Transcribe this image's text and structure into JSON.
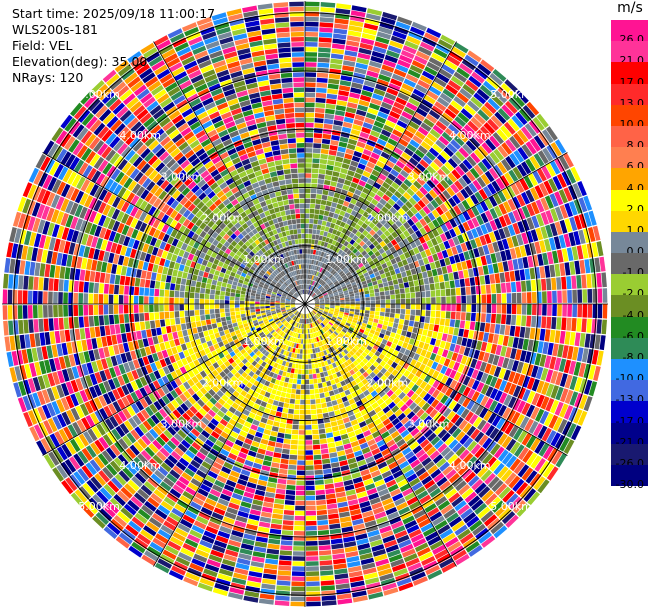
{
  "header": {
    "start_time": "Start time: 2025/09/18 11:00:17",
    "instrument": "WLS200s-181",
    "field": "Field: VEL",
    "elevation": "Elevation(deg): 35.00",
    "nrays": "NRays: 120"
  },
  "colorbar": {
    "unit": "m/s",
    "ticks": [
      "26.0",
      "21.0",
      "17.0",
      "13.0",
      "10.0",
      "8.0",
      "6.0",
      "4.0",
      "2.0",
      "1.0",
      "0.0",
      "-1.0",
      "-2.0",
      "-4.0",
      "-6.0",
      "-8.0",
      "-10.0",
      "-13.0",
      "-17.0",
      "-21.0",
      "-26.0",
      "-30.0"
    ],
    "colors": [
      "#ff1493",
      "#ff3399",
      "#ff0000",
      "#ff2a2a",
      "#ff4500",
      "#ff6347",
      "#ff7f50",
      "#ffa500",
      "#ffff00",
      "#ffd700",
      "#778899",
      "#696969",
      "#9acd32",
      "#6b8e23",
      "#228b22",
      "#2e8b57",
      "#1e90ff",
      "#4169e1",
      "#0000cd",
      "#00008b",
      "#191970",
      "#000080"
    ]
  },
  "chart_data": {
    "type": "heatmap",
    "title": "",
    "field": "VEL",
    "units": "m/s",
    "elevation_deg": 35.0,
    "nrays": 120,
    "range_rings_km": [
      1.0,
      2.0,
      3.0,
      4.0,
      5.0
    ],
    "ring_labels": [
      "1.00km",
      "2.00km",
      "3.00km",
      "4.00km",
      "5.00km"
    ],
    "max_range_km": 5.2,
    "value_range": [
      -30.0,
      26.0
    ],
    "pattern": "Near field: grey/yellow-green (0 to -2 m/s) in north, yellow (2 to 4 m/s) in south; outer range: noisy full-scale values"
  }
}
